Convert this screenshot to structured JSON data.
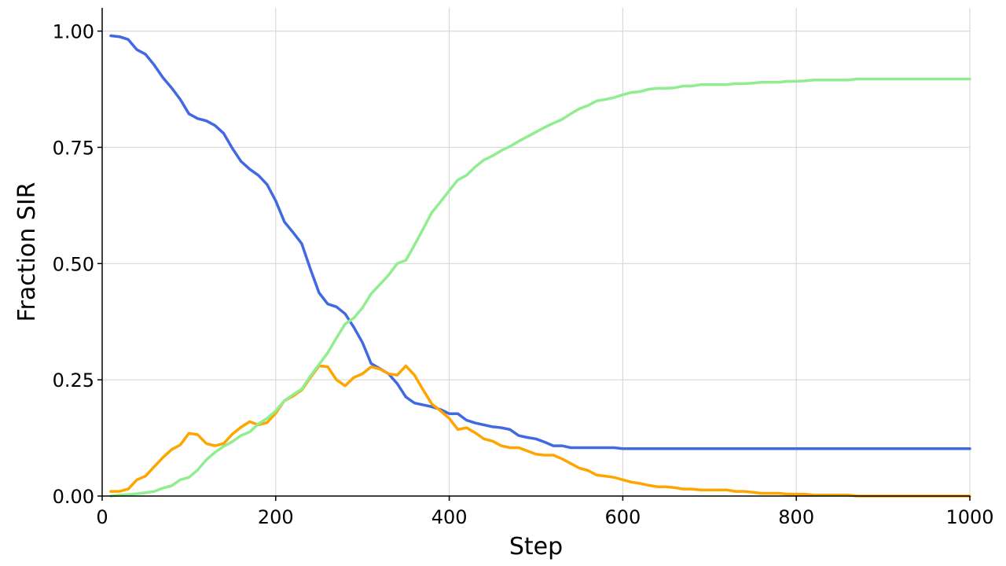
{
  "chart_data": {
    "type": "line",
    "title": "",
    "xlabel": "Step",
    "ylabel": "Fraction SIR",
    "xlim": [
      0,
      1000
    ],
    "ylim": [
      0,
      1.05
    ],
    "xticks": [
      "0",
      "200",
      "400",
      "600",
      "800",
      "1000"
    ],
    "yticks": [
      "0.00",
      "0.25",
      "0.50",
      "0.75",
      "1.00"
    ],
    "grid": true,
    "legend": "none",
    "x": [
      10,
      20,
      30,
      40,
      50,
      60,
      70,
      80,
      90,
      100,
      110,
      120,
      130,
      140,
      150,
      160,
      170,
      180,
      190,
      200,
      210,
      220,
      230,
      240,
      250,
      260,
      270,
      280,
      290,
      300,
      310,
      320,
      330,
      340,
      350,
      360,
      370,
      380,
      390,
      400,
      410,
      420,
      430,
      440,
      450,
      460,
      470,
      480,
      490,
      500,
      510,
      520,
      530,
      540,
      550,
      560,
      570,
      580,
      590,
      600,
      610,
      620,
      630,
      640,
      650,
      660,
      670,
      680,
      690,
      700,
      710,
      720,
      730,
      740,
      750,
      760,
      770,
      780,
      790,
      800,
      810,
      820,
      830,
      840,
      850,
      860,
      870,
      880,
      890,
      900,
      910,
      920,
      930,
      940,
      950,
      960,
      970,
      980,
      990,
      1000
    ],
    "series": [
      {
        "color": "#4169e1",
        "values": [
          0.99,
          0.988,
          0.982,
          0.96,
          0.95,
          0.927,
          0.9,
          0.878,
          0.853,
          0.822,
          0.812,
          0.807,
          0.797,
          0.78,
          0.748,
          0.72,
          0.703,
          0.69,
          0.67,
          0.635,
          0.59,
          0.567,
          0.543,
          0.488,
          0.437,
          0.413,
          0.407,
          0.392,
          0.363,
          0.33,
          0.285,
          0.274,
          0.263,
          0.242,
          0.213,
          0.2,
          0.196,
          0.192,
          0.186,
          0.177,
          0.177,
          0.163,
          0.157,
          0.153,
          0.149,
          0.147,
          0.143,
          0.13,
          0.126,
          0.123,
          0.116,
          0.108,
          0.108,
          0.104,
          0.104,
          0.104,
          0.104,
          0.104,
          0.104,
          0.102,
          0.102,
          0.102,
          0.102,
          0.102,
          0.102,
          0.102,
          0.102,
          0.102,
          0.102,
          0.102,
          0.102,
          0.102,
          0.102,
          0.102,
          0.102,
          0.102,
          0.102,
          0.102,
          0.102,
          0.102,
          0.102,
          0.102,
          0.102,
          0.102,
          0.102,
          0.102,
          0.102,
          0.102,
          0.102,
          0.102,
          0.102,
          0.102,
          0.102,
          0.102,
          0.102,
          0.102,
          0.102,
          0.102,
          0.102,
          0.102
        ]
      },
      {
        "color": "#ffa500",
        "values": [
          0.01,
          0.01,
          0.015,
          0.035,
          0.043,
          0.063,
          0.083,
          0.1,
          0.11,
          0.135,
          0.132,
          0.113,
          0.108,
          0.113,
          0.133,
          0.148,
          0.16,
          0.153,
          0.158,
          0.178,
          0.205,
          0.215,
          0.228,
          0.255,
          0.28,
          0.278,
          0.25,
          0.237,
          0.255,
          0.263,
          0.278,
          0.273,
          0.263,
          0.26,
          0.28,
          0.26,
          0.228,
          0.198,
          0.183,
          0.167,
          0.143,
          0.147,
          0.136,
          0.123,
          0.118,
          0.108,
          0.104,
          0.104,
          0.097,
          0.09,
          0.088,
          0.088,
          0.08,
          0.07,
          0.06,
          0.055,
          0.045,
          0.043,
          0.04,
          0.035,
          0.03,
          0.027,
          0.023,
          0.02,
          0.02,
          0.018,
          0.015,
          0.015,
          0.013,
          0.013,
          0.013,
          0.013,
          0.01,
          0.01,
          0.008,
          0.006,
          0.006,
          0.006,
          0.004,
          0.004,
          0.004,
          0.002,
          0.002,
          0.002,
          0.002,
          0.002,
          0,
          0,
          0,
          0,
          0,
          0,
          0,
          0,
          0,
          0,
          0,
          0,
          0,
          0
        ]
      },
      {
        "color": "#90ee90",
        "values": [
          0,
          0.002,
          0.003,
          0.005,
          0.007,
          0.01,
          0.017,
          0.022,
          0.035,
          0.04,
          0.056,
          0.078,
          0.094,
          0.107,
          0.117,
          0.13,
          0.138,
          0.155,
          0.167,
          0.183,
          0.205,
          0.218,
          0.23,
          0.258,
          0.283,
          0.308,
          0.34,
          0.37,
          0.383,
          0.405,
          0.435,
          0.455,
          0.475,
          0.5,
          0.507,
          0.54,
          0.575,
          0.61,
          0.633,
          0.657,
          0.68,
          0.69,
          0.708,
          0.723,
          0.732,
          0.743,
          0.752,
          0.763,
          0.773,
          0.783,
          0.793,
          0.802,
          0.81,
          0.822,
          0.833,
          0.84,
          0.85,
          0.853,
          0.857,
          0.863,
          0.868,
          0.87,
          0.875,
          0.877,
          0.877,
          0.878,
          0.882,
          0.882,
          0.885,
          0.885,
          0.885,
          0.885,
          0.887,
          0.887,
          0.888,
          0.89,
          0.89,
          0.89,
          0.892,
          0.892,
          0.893,
          0.895,
          0.895,
          0.895,
          0.895,
          0.895,
          0.897,
          0.897,
          0.897,
          0.897,
          0.897,
          0.897,
          0.897,
          0.897,
          0.897,
          0.897,
          0.897,
          0.897,
          0.897,
          0.897
        ]
      }
    ]
  }
}
